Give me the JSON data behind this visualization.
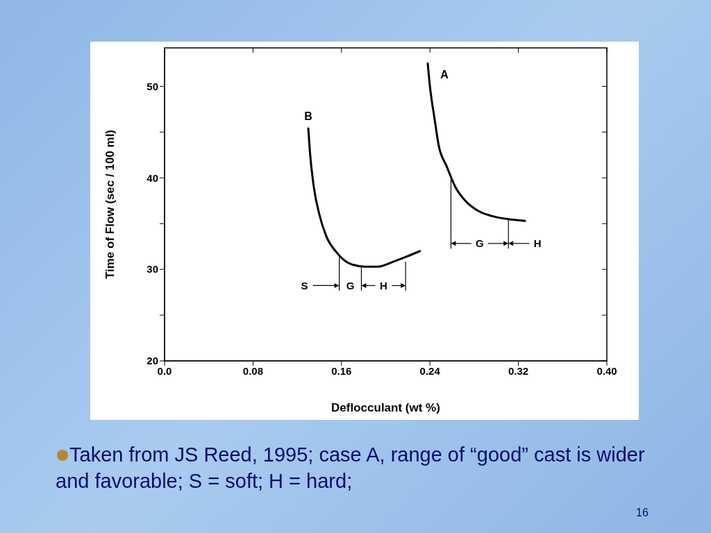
{
  "chart_data": {
    "type": "line",
    "xlabel": "Deflocculant (wt %)",
    "ylabel": "Time of Flow (sec / 100 ml)",
    "xlim": [
      0,
      0.4
    ],
    "ylim": [
      20,
      54.2
    ],
    "xticks": [
      {
        "value": 0,
        "label": "0.0"
      },
      0.08,
      0.16,
      0.24,
      0.32,
      {
        "value": 0.4,
        "label": "0.40"
      }
    ],
    "yticks": [
      20,
      {
        "value": 25,
        "label": null
      },
      30,
      {
        "value": 35,
        "label": null
      },
      40,
      {
        "value": 45,
        "label": null
      },
      50
    ],
    "series": [
      {
        "name": "B",
        "color": "#000000",
        "x": [
          0.13,
          0.1315,
          0.135,
          0.14,
          0.146,
          0.156,
          0.168,
          0.181,
          0.193,
          0.206,
          0.219,
          0.231
        ],
        "values": [
          45.4,
          42.8,
          39.0,
          36.0,
          33.7,
          31.8,
          30.6,
          30.3,
          30.3,
          30.8,
          31.4,
          32.0
        ]
      },
      {
        "name": "A",
        "color": "#000000",
        "x": [
          0.238,
          0.24,
          0.244,
          0.248,
          0.255,
          0.263,
          0.272,
          0.285,
          0.297,
          0.31,
          0.326
        ],
        "values": [
          52.5,
          50.0,
          46.6,
          43.5,
          41.3,
          39.0,
          37.5,
          36.3,
          35.8,
          35.5,
          35.3
        ]
      },
      {
        "color": "#000000",
        "x": [
          0.158,
          0.158
        ],
        "values": [
          31.6,
          27.7
        ]
      },
      {
        "color": "#000000",
        "x": [
          0.178,
          0.178
        ],
        "values": [
          30.3,
          27.7
        ]
      },
      {
        "color": "#000000",
        "x": [
          0.218,
          0.218
        ],
        "values": [
          30.8,
          27.7
        ]
      },
      {
        "color": "#000000",
        "x": [
          0.259,
          0.259
        ],
        "values": [
          40.3,
          32.3
        ]
      },
      {
        "color": "#000000",
        "x": [
          0.311,
          0.311
        ],
        "values": [
          35.5,
          32.3
        ]
      }
    ],
    "annotations": [
      "S",
      "G",
      "H",
      "G",
      "H",
      "Taken from JS Reed, 1995; case A, range of “good” cast is wider and favorable; S = soft; H = hard;",
      "16"
    ]
  }
}
